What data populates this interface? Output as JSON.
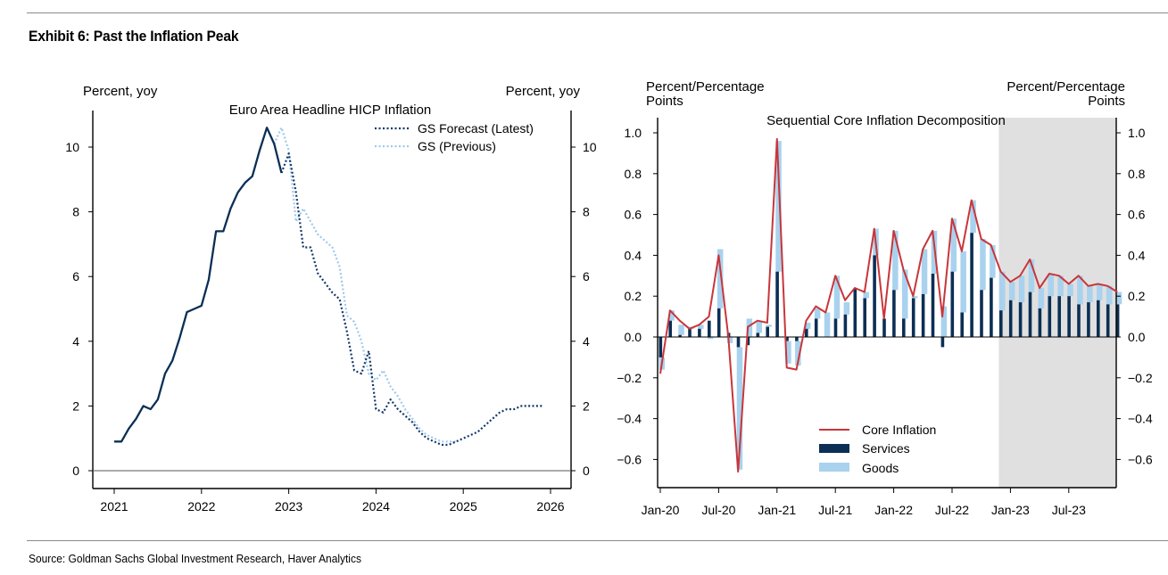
{
  "exhibit_title": "Exhibit 6: Past the Inflation Peak",
  "source": "Source: Goldman Sachs Global Investment Research, Haver Analytics",
  "chart_data": [
    {
      "type": "line",
      "title": "Euro Area Headline HICP Inflation",
      "ylabel_left": "Percent, yoy",
      "ylabel_right": "Percent, yoy",
      "xlim": [
        2021,
        2026
      ],
      "ylim": [
        0,
        11
      ],
      "x_ticks": [
        2021,
        2022,
        2023,
        2024,
        2025,
        2026
      ],
      "x_tick_labels": [
        "2021",
        "2022",
        "2023",
        "2024",
        "2025",
        "2026"
      ],
      "y_ticks": [
        0,
        2,
        4,
        6,
        8,
        10
      ],
      "y_tick_labels": [
        "0",
        "2",
        "4",
        "6",
        "8",
        "10"
      ],
      "legend_position": "top-right",
      "colors": {
        "actual": "#0b2f55",
        "latest": "#12376b",
        "previous": "#9ec9ec"
      },
      "series": [
        {
          "style": "solid",
          "x": [
            2021.0,
            2021.083,
            2021.167,
            2021.25,
            2021.333,
            2021.417,
            2021.5,
            2021.583,
            2021.667,
            2021.75,
            2021.833,
            2021.917,
            2022.0,
            2022.083,
            2022.167,
            2022.25,
            2022.333,
            2022.417,
            2022.5,
            2022.583,
            2022.667,
            2022.75,
            2022.833,
            2022.917
          ],
          "values": [
            0.9,
            0.9,
            1.3,
            1.6,
            2.0,
            1.9,
            2.2,
            3.0,
            3.4,
            4.1,
            4.9,
            5.0,
            5.1,
            5.9,
            7.4,
            7.4,
            8.1,
            8.6,
            8.9,
            9.1,
            9.9,
            10.6,
            10.1,
            9.2
          ]
        },
        {
          "name": "GS Forecast (Latest)",
          "style": "dotted",
          "x": [
            2022.917,
            2023.0,
            2023.083,
            2023.167,
            2023.25,
            2023.333,
            2023.417,
            2023.5,
            2023.583,
            2023.667,
            2023.75,
            2023.833,
            2023.917,
            2024.0,
            2024.083,
            2024.167,
            2024.25,
            2024.333,
            2024.417,
            2024.5,
            2024.583,
            2024.667,
            2024.75,
            2024.833,
            2024.917,
            2025.0,
            2025.083,
            2025.167,
            2025.25,
            2025.333,
            2025.417,
            2025.5,
            2025.583,
            2025.667,
            2025.75,
            2025.833,
            2025.917
          ],
          "values": [
            9.2,
            9.8,
            8.6,
            6.9,
            6.9,
            6.1,
            5.8,
            5.5,
            5.3,
            4.3,
            3.1,
            3.0,
            3.7,
            1.9,
            1.8,
            2.2,
            1.9,
            1.7,
            1.5,
            1.2,
            1.0,
            0.9,
            0.8,
            0.8,
            0.9,
            1.0,
            1.1,
            1.2,
            1.4,
            1.6,
            1.8,
            1.9,
            1.9,
            2.0,
            2.0,
            2.0,
            2.0
          ]
        },
        {
          "name": "GS (Previous)",
          "style": "dotted",
          "x": [
            2022.833,
            2022.917,
            2023.0,
            2023.083,
            2023.167,
            2023.25,
            2023.333,
            2023.417,
            2023.5,
            2023.583,
            2023.667,
            2023.75,
            2023.833,
            2023.917,
            2024.0,
            2024.083,
            2024.167,
            2024.25,
            2024.333,
            2024.417,
            2024.5,
            2024.583,
            2024.667,
            2024.75,
            2024.833,
            2024.917
          ],
          "values": [
            10.1,
            10.6,
            9.9,
            7.7,
            8.1,
            7.7,
            7.3,
            7.1,
            6.9,
            6.3,
            4.8,
            4.6,
            4.0,
            3.0,
            2.8,
            3.1,
            2.6,
            2.3,
            1.9,
            1.6,
            1.3,
            1.1,
            1.0,
            0.9,
            0.9,
            0.9
          ]
        }
      ]
    },
    {
      "type": "bar",
      "title": "Sequential Core Inflation Decomposition",
      "ylabel_left": "Percent/Percentage\nPoints",
      "ylabel_right": "Percent/Percentage\nPoints",
      "ylim": [
        -0.7,
        1.1
      ],
      "y_ticks": [
        -0.6,
        -0.4,
        -0.2,
        0.0,
        0.2,
        0.4,
        0.6,
        0.8,
        1.0
      ],
      "y_tick_labels": [
        "−0.6",
        "−0.4",
        "−0.2",
        "0.0",
        "0.2",
        "0.4",
        "0.6",
        "0.8",
        "1.0"
      ],
      "x_tick_labels": [
        "Jan-20",
        "Jul-20",
        "Jan-21",
        "Jul-21",
        "Jan-22",
        "Jul-22",
        "Jan-23",
        "Jul-23"
      ],
      "x_tick_index": [
        0,
        6,
        12,
        18,
        24,
        30,
        36,
        42
      ],
      "forecast_shading_from": "Jan-23",
      "legend_position": "bottom-center",
      "colors": {
        "core": "#c8363a",
        "services": "#0b2f55",
        "goods": "#a9d2ee",
        "shade": "#e0e0e0"
      },
      "months": 48,
      "series": [
        {
          "name": "Core Inflation",
          "values": [
            -0.18,
            0.13,
            0.08,
            0.04,
            0.06,
            0.1,
            0.4,
            0.0,
            -0.66,
            0.05,
            0.08,
            0.07,
            0.97,
            -0.15,
            -0.16,
            0.08,
            0.15,
            0.12,
            0.3,
            0.18,
            0.24,
            0.22,
            0.53,
            0.09,
            0.52,
            0.33,
            0.2,
            0.43,
            0.52,
            0.1,
            0.58,
            0.42,
            0.67,
            0.48,
            0.45,
            0.32,
            0.27,
            0.3,
            0.38,
            0.24,
            0.31,
            0.3,
            0.26,
            0.3,
            0.25,
            0.26,
            0.25,
            0.22
          ]
        },
        {
          "name": "Services",
          "values": [
            -0.1,
            0.08,
            0.01,
            0.04,
            0.04,
            0.08,
            0.14,
            0.02,
            -0.05,
            -0.04,
            0.02,
            0.05,
            0.32,
            -0.02,
            -0.02,
            0.04,
            0.09,
            0.0,
            0.09,
            0.11,
            0.24,
            0.19,
            0.4,
            0.09,
            0.23,
            0.09,
            0.19,
            0.21,
            0.31,
            -0.05,
            0.32,
            0.12,
            0.51,
            0.23,
            0.29,
            0.13,
            0.18,
            0.17,
            0.22,
            0.14,
            0.2,
            0.2,
            0.2,
            0.16,
            0.17,
            0.18,
            0.16,
            0.16
          ]
        },
        {
          "name": "Goods",
          "values": [
            -0.06,
            0.05,
            0.05,
            0.01,
            0.02,
            -0.01,
            0.29,
            -0.03,
            -0.6,
            0.09,
            0.06,
            0.01,
            0.64,
            -0.11,
            -0.12,
            0.03,
            0.05,
            0.12,
            0.21,
            0.06,
            0.0,
            0.03,
            0.13,
            0.0,
            0.29,
            0.24,
            0.01,
            0.22,
            0.21,
            0.15,
            0.26,
            0.3,
            0.16,
            0.25,
            0.16,
            0.19,
            0.09,
            0.13,
            0.16,
            0.1,
            0.11,
            0.1,
            0.06,
            0.14,
            0.08,
            0.08,
            0.09,
            0.06
          ]
        }
      ]
    }
  ]
}
